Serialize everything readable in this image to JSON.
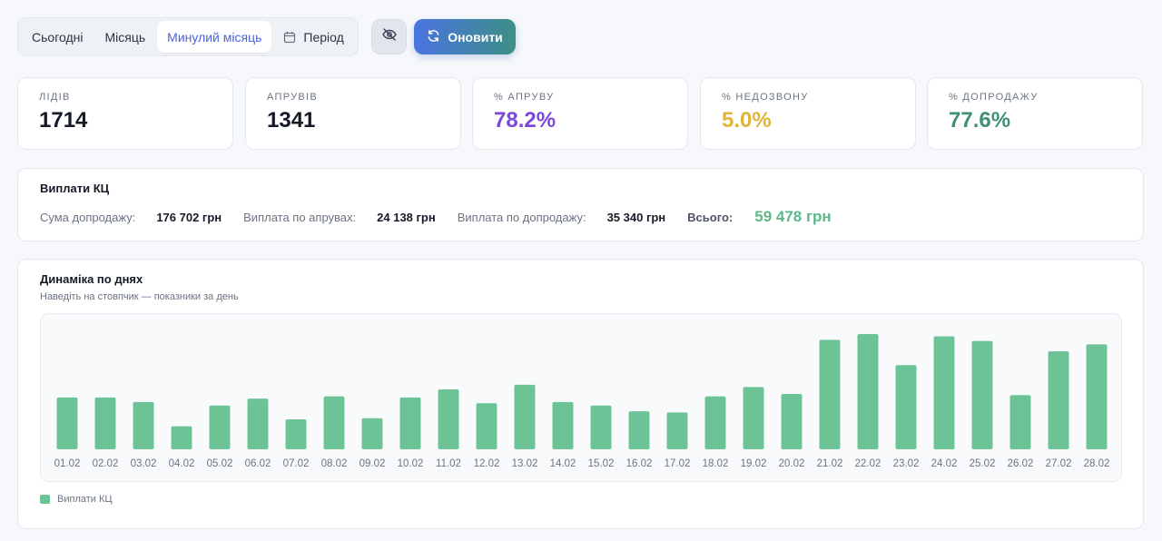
{
  "toolbar": {
    "tabs": [
      {
        "label": "Сьогодні"
      },
      {
        "label": "Місяць"
      },
      {
        "label": "Минулий місяць",
        "active": true
      },
      {
        "label": "Період",
        "icon": "calendar-icon"
      }
    ],
    "hide_icon": "eye-off-icon",
    "refresh_label": "Оновити",
    "refresh_icon": "refresh-icon"
  },
  "stats": [
    {
      "label": "Лідів",
      "value": "1714",
      "color": "#141a26"
    },
    {
      "label": "Апрувів",
      "value": "1341",
      "color": "#141a26"
    },
    {
      "label": "% апруву",
      "value": "78.2%",
      "color": "#7b47dd"
    },
    {
      "label": "% недозвону",
      "value": "5.0%",
      "color": "#e0b43a"
    },
    {
      "label": "% допродажу",
      "value": "77.6%",
      "color": "#3f8f79"
    }
  ],
  "payouts": {
    "title": "Виплати КЦ",
    "upsell_sum_label": "Сума допродажу:",
    "upsell_sum_value": "176 702 грн",
    "approve_payout_label": "Виплата по апрувах:",
    "approve_payout_value": "24 138 грн",
    "upsell_payout_label": "Виплата по допродажу:",
    "upsell_payout_value": "35 340 грн",
    "total_label": "Всього:",
    "total_value": "59 478 грн"
  },
  "dynamics": {
    "title": "Динаміка по днях",
    "subtitle": "Наведіть на стовпчик — показники за день",
    "legend_label": "Виплати КЦ",
    "bar_color": "#6cc496"
  },
  "chart_data": {
    "type": "bar",
    "categories": [
      "01.02",
      "02.02",
      "03.02",
      "04.02",
      "05.02",
      "06.02",
      "07.02",
      "08.02",
      "09.02",
      "10.02",
      "11.02",
      "12.02",
      "13.02",
      "14.02",
      "15.02",
      "16.02",
      "17.02",
      "18.02",
      "19.02",
      "20.02",
      "21.02",
      "22.02",
      "23.02",
      "24.02",
      "25.02",
      "26.02",
      "27.02",
      "28.02"
    ],
    "series": [
      {
        "name": "Виплати КЦ",
        "values": [
          45,
          45,
          41,
          20,
          38,
          44,
          26,
          46,
          27,
          45,
          52,
          40,
          56,
          41,
          38,
          33,
          32,
          46,
          54,
          48,
          95,
          100,
          73,
          98,
          94,
          47,
          85,
          91
        ]
      }
    ],
    "ylim": [
      0,
      100
    ],
    "grid": false,
    "legend": "bottom-left"
  }
}
